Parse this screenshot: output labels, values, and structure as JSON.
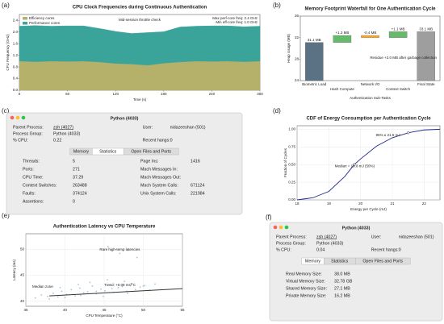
{
  "chart_data": [
    {
      "panel": "(a)",
      "type": "area",
      "title": "CPU Clock Frequencies during Continuous Authentication",
      "x_label": "Time (s)",
      "y_label": "CPU Frequency (GHz)",
      "x": [
        0,
        20,
        40,
        60,
        80,
        100,
        120,
        140,
        160,
        180,
        200,
        220,
        240,
        260,
        280,
        300
      ],
      "series": [
        {
          "name": "Efficiency cores",
          "color": "#b5b06a",
          "values": [
            1.0,
            0.98,
            1.0,
            0.99,
            1.0,
            0.97,
            0.92,
            0.9,
            0.86,
            0.93,
            0.97,
            1.0,
            0.99,
            1.0,
            0.98,
            1.0
          ]
        },
        {
          "name": "Performance cores",
          "color": "#3aa39a",
          "values": [
            1.2,
            1.24,
            1.2,
            1.22,
            1.21,
            1.15,
            1.1,
            1.05,
            1.12,
            1.08,
            1.2,
            1.2,
            1.22,
            1.21,
            1.2,
            1.2
          ]
        }
      ],
      "stacked": true,
      "legend": "upper left",
      "xlim": [
        0,
        300
      ],
      "xticks": [
        0,
        60,
        120,
        180,
        240,
        300
      ],
      "ylim": [
        0,
        2.6
      ],
      "yticks": [
        {
          "value": 0,
          "label": "0.0"
        },
        0.4,
        0.8,
        1.2,
        1.6,
        {
          "value": 2,
          "label": "2.0"
        },
        2.4
      ],
      "annotations": [
        "Mid-session throttle check",
        "Max perf-core freq: 2.4 GHz",
        "Min eff-core freq: 1.0 GHz"
      ]
    },
    {
      "panel": "(b)",
      "type": "waterfall",
      "title": "Memory Footprint Waterfall for One Authentication Cycle",
      "x_label": "Authentication Sub-Tasks",
      "y_label": "Heap Usage (MB)",
      "categories": [
        "Biometric Load",
        "Hash Compute",
        "Network I/O",
        "Context Switch",
        "Final State"
      ],
      "values": [
        31.1,
        1.3,
        -0.4,
        1.1,
        33.1
      ],
      "value_labels": [
        "31.1 MB",
        "+1.3 MB",
        "-0.4 MB",
        "+1.1 MB",
        "33.1 MB"
      ],
      "colors": [
        "#5b7184",
        "#66bb6a",
        "#ffa726",
        "#66bb6a",
        "#9e9e9e"
      ],
      "total_bars": [
        0,
        4
      ],
      "ylim": [
        24,
        36
      ],
      "yticks": [
        24,
        28,
        32,
        36
      ],
      "annotations": [
        "Residue +2.0 MB after garbage collection"
      ]
    },
    {
      "panel": "(d)",
      "type": "line",
      "title": "CDF of Energy Consumption per Authentication Cycle",
      "x_label": "Energy per Cycle (mJ)",
      "y_label": "Fraction of Cycles",
      "x": [
        18,
        18.5,
        19,
        19.5,
        19.8,
        20,
        20.5,
        21,
        21.5,
        22,
        22.5
      ],
      "series": [
        {
          "color": "#1f2a8a",
          "values": [
            0.0,
            0.03,
            0.12,
            0.33,
            0.5,
            0.58,
            0.76,
            0.88,
            0.95,
            0.99,
            1.0
          ]
        }
      ],
      "markers": [
        4,
        8
      ],
      "grid": true,
      "xlim": [
        18,
        22.5
      ],
      "xticks": [
        18,
        19,
        20,
        21,
        22
      ],
      "ylim": [
        0,
        1.05
      ],
      "yticks": [
        {
          "value": 0,
          "label": "0.00"
        },
        0.25,
        {
          "value": 0.5,
          "label": "0.50"
        },
        0.75,
        {
          "value": 1,
          "label": "1.00"
        }
      ],
      "annotations": [
        "Median = 19.8 mJ (50%)",
        "95% ≤ 21.5 mJ"
      ]
    },
    {
      "panel": "(e)",
      "type": "scatter",
      "title": "Authentication Latency vs CPU Temperature",
      "x_label": "CPU Temperature (°C)",
      "y_label": "Latency (ms)",
      "x": [
        36.2,
        37.0,
        37.8,
        38.5,
        39.1,
        39.6,
        40.2,
        40.8,
        41.3,
        41.9,
        42.4,
        42.9,
        43.5,
        44.0,
        44.6,
        45.1,
        45.7,
        46.2,
        46.8,
        47.3,
        47.9,
        48.5,
        49.0,
        49.6,
        50.2,
        50.8,
        51.5,
        38.0,
        40.0,
        42.0,
        44.0,
        46.0,
        48.0,
        50.0,
        43.2,
        45.4,
        47.6,
        39.4,
        41.7,
        44.9,
        45.5,
        47.0,
        49.2
      ],
      "series": [
        {
          "color": "#8fb8cf",
          "values": [
            40.6,
            41.2,
            40.9,
            41.5,
            40.8,
            41.9,
            41.3,
            42.2,
            41.0,
            42.5,
            41.6,
            41.8,
            42.9,
            41.4,
            42.3,
            42.0,
            43.1,
            41.7,
            42.6,
            42.8,
            41.9,
            43.4,
            42.2,
            42.7,
            43.0,
            42.1,
            43.3,
            40.4,
            40.7,
            41.1,
            41.9,
            42.4,
            41.5,
            42.9,
            43.6,
            44.1,
            43.8,
            42.6,
            43.2,
            40.9,
            50.5,
            49.2,
            48.4
          ]
        }
      ],
      "trend": {
        "x": [
          38,
          55
        ],
        "values": [
          41.0,
          42.4
        ],
        "color": "#333333"
      },
      "grid": true,
      "xlim": [
        35,
        55
      ],
      "xticks": [
        35,
        40,
        45,
        50,
        55
      ],
      "ylim": [
        39,
        53
      ],
      "yticks": [
        40,
        45,
        50
      ],
      "annotations": [
        "Rare high-temp latencies",
        "Median zone",
        "Trend: +0.08 ms/°C"
      ]
    }
  ],
  "windows": [
    {
      "panel": "(c)",
      "title": "Python (4033)",
      "info": [
        {
          "label": "Parent Process:",
          "value": "zsh (4027)"
        },
        {
          "label": "User:",
          "value": "nidazeeshan (501)"
        },
        {
          "label": "Process Group:",
          "value": "Python (4033)"
        },
        {
          "label": "% CPU:",
          "value": "0.22"
        },
        {
          "label": "Recent hangs:",
          "value": "0"
        }
      ],
      "tabs": [
        "Memory",
        "Statistics",
        "Open Files and Ports"
      ],
      "selected_tab": 1,
      "stats": {
        "left": [
          {
            "label": "Threads:",
            "value": 5
          },
          {
            "label": "Ports:",
            "value": 271
          },
          {
            "label": "CPU Time:",
            "value": 37.29
          },
          {
            "label": "Context Switches:",
            "value": 263488
          },
          {
            "label": "Faults:",
            "value": 374124
          },
          {
            "label": "Assertions:",
            "value": 0
          }
        ],
        "right": [
          {
            "label": "Page Ins:",
            "value": 1416
          },
          {
            "label": "Mach Messages In:"
          },
          {
            "label": "Mach Messages Out:"
          },
          {
            "label": "Mach System Calls:",
            "value": 671124
          },
          {
            "label": "Unix System Calls:",
            "value": 221984
          }
        ]
      }
    },
    {
      "panel": "(f)",
      "title": "Python (4033)",
      "info": [
        {
          "label": "Parent Process:",
          "value": "zsh (4027)"
        },
        {
          "label": "User:",
          "value": "nidazeeshan (501)"
        },
        {
          "label": "Process Group:",
          "value": "Python (4033)"
        },
        {
          "label": "% CPU:",
          "value": "0.04"
        },
        {
          "label": "Recent hangs:",
          "value": "0"
        }
      ],
      "tabs": [
        "Memory",
        "Statistics",
        "Open Files and Ports"
      ],
      "selected_tab": 0,
      "memory": [
        {
          "label": "Real Memory Size:",
          "value": "38.0 MB"
        },
        {
          "label": "Virtual Memory Size:",
          "value": "32.78 GB"
        },
        {
          "label": "Shared Memory Size:",
          "value": "27.1 MB"
        },
        {
          "label": "Private Memory Size:",
          "value": "16.2 MB"
        }
      ]
    }
  ]
}
